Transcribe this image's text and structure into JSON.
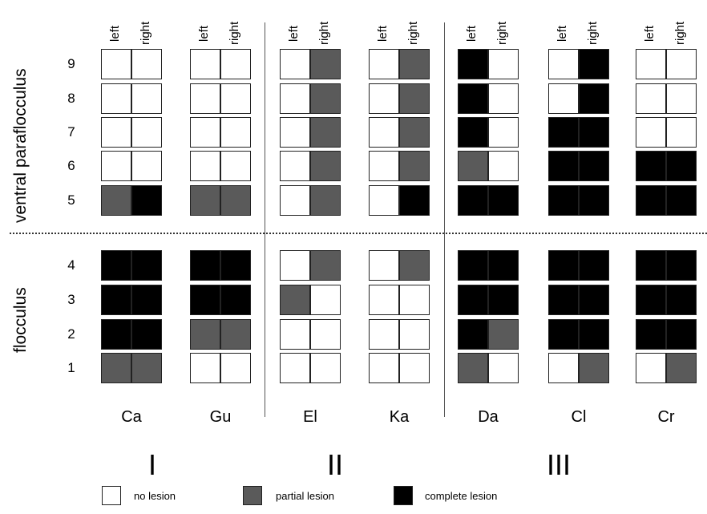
{
  "axis_titles": {
    "upper": "ventral paraflocculus",
    "lower": "flocculus"
  },
  "side_labels": [
    "left",
    "right"
  ],
  "rows_upper": [
    "9",
    "8",
    "7",
    "6",
    "5"
  ],
  "rows_lower": [
    "4",
    "3",
    "2",
    "1"
  ],
  "groups": [
    {
      "roman": "I",
      "animals": [
        "Ca",
        "Gu"
      ]
    },
    {
      "roman": "II",
      "animals": [
        "El",
        "Ka"
      ]
    },
    {
      "roman": "III",
      "animals": [
        "Da",
        "Cl",
        "Cr"
      ]
    }
  ],
  "lesion_colors": {
    "none": "#ffffff",
    "partial": "#5a5a5a",
    "complete": "#000000"
  },
  "legend": [
    {
      "key": "none",
      "label": "no  lesion"
    },
    {
      "key": "partial",
      "label": "partial lesion"
    },
    {
      "key": "complete",
      "label": "complete lesion"
    }
  ],
  "lesion_grid": {
    "Ca": {
      "9": [
        "none",
        "none"
      ],
      "8": [
        "none",
        "none"
      ],
      "7": [
        "none",
        "none"
      ],
      "6": [
        "none",
        "none"
      ],
      "5": [
        "partial",
        "complete"
      ],
      "4": [
        "complete",
        "complete"
      ],
      "3": [
        "complete",
        "complete"
      ],
      "2": [
        "complete",
        "complete"
      ],
      "1": [
        "partial",
        "partial"
      ]
    },
    "Gu": {
      "9": [
        "none",
        "none"
      ],
      "8": [
        "none",
        "none"
      ],
      "7": [
        "none",
        "none"
      ],
      "6": [
        "none",
        "none"
      ],
      "5": [
        "partial",
        "partial"
      ],
      "4": [
        "complete",
        "complete"
      ],
      "3": [
        "complete",
        "complete"
      ],
      "2": [
        "partial",
        "partial"
      ],
      "1": [
        "none",
        "none"
      ]
    },
    "El": {
      "9": [
        "none",
        "partial"
      ],
      "8": [
        "none",
        "partial"
      ],
      "7": [
        "none",
        "partial"
      ],
      "6": [
        "none",
        "partial"
      ],
      "5": [
        "none",
        "partial"
      ],
      "4": [
        "none",
        "partial"
      ],
      "3": [
        "partial",
        "none"
      ],
      "2": [
        "none",
        "none"
      ],
      "1": [
        "none",
        "none"
      ]
    },
    "Ka": {
      "9": [
        "none",
        "partial"
      ],
      "8": [
        "none",
        "partial"
      ],
      "7": [
        "none",
        "partial"
      ],
      "6": [
        "none",
        "partial"
      ],
      "5": [
        "none",
        "complete"
      ],
      "4": [
        "none",
        "partial"
      ],
      "3": [
        "none",
        "none"
      ],
      "2": [
        "none",
        "none"
      ],
      "1": [
        "none",
        "none"
      ]
    },
    "Da": {
      "9": [
        "complete",
        "none"
      ],
      "8": [
        "complete",
        "none"
      ],
      "7": [
        "complete",
        "none"
      ],
      "6": [
        "partial",
        "none"
      ],
      "5": [
        "complete",
        "complete"
      ],
      "4": [
        "complete",
        "complete"
      ],
      "3": [
        "complete",
        "complete"
      ],
      "2": [
        "complete",
        "partial"
      ],
      "1": [
        "partial",
        "none"
      ]
    },
    "Cl": {
      "9": [
        "none",
        "complete"
      ],
      "8": [
        "none",
        "complete"
      ],
      "7": [
        "complete",
        "complete"
      ],
      "6": [
        "complete",
        "complete"
      ],
      "5": [
        "complete",
        "complete"
      ],
      "4": [
        "complete",
        "complete"
      ],
      "3": [
        "complete",
        "complete"
      ],
      "2": [
        "complete",
        "complete"
      ],
      "1": [
        "none",
        "partial"
      ]
    },
    "Cr": {
      "9": [
        "none",
        "none"
      ],
      "8": [
        "none",
        "none"
      ],
      "7": [
        "none",
        "none"
      ],
      "6": [
        "complete",
        "complete"
      ],
      "5": [
        "complete",
        "complete"
      ],
      "4": [
        "complete",
        "complete"
      ],
      "3": [
        "complete",
        "complete"
      ],
      "2": [
        "complete",
        "complete"
      ],
      "1": [
        "none",
        "partial"
      ]
    }
  }
}
